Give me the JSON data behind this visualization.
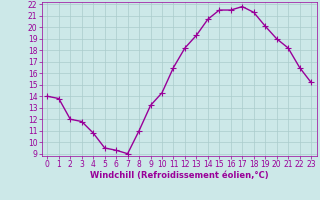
{
  "x": [
    0,
    1,
    2,
    3,
    4,
    5,
    6,
    7,
    8,
    9,
    10,
    11,
    12,
    13,
    14,
    15,
    16,
    17,
    18,
    19,
    20,
    21,
    22,
    23
  ],
  "y": [
    14,
    13.8,
    12,
    11.8,
    10.8,
    9.5,
    9.3,
    9.0,
    11.0,
    13.2,
    14.3,
    16.5,
    18.2,
    19.3,
    20.7,
    21.5,
    21.5,
    21.8,
    21.3,
    20.1,
    19.0,
    18.2,
    16.5,
    15.2
  ],
  "line_color": "#990099",
  "marker": "+",
  "marker_size": 4,
  "bg_color": "#cce8e8",
  "grid_color": "#aacccc",
  "xlabel": "Windchill (Refroidissement éolien,°C)",
  "xlabel_color": "#990099",
  "tick_color": "#990099",
  "ylim": [
    9,
    22
  ],
  "xlim": [
    -0.5,
    23.5
  ],
  "yticks": [
    9,
    10,
    11,
    12,
    13,
    14,
    15,
    16,
    17,
    18,
    19,
    20,
    21,
    22
  ],
  "xticks": [
    0,
    1,
    2,
    3,
    4,
    5,
    6,
    7,
    8,
    9,
    10,
    11,
    12,
    13,
    14,
    15,
    16,
    17,
    18,
    19,
    20,
    21,
    22,
    23
  ],
  "line_width": 1.0,
  "marker_linewidth": 0.8,
  "tick_fontsize": 5.5,
  "xlabel_fontsize": 6.0
}
